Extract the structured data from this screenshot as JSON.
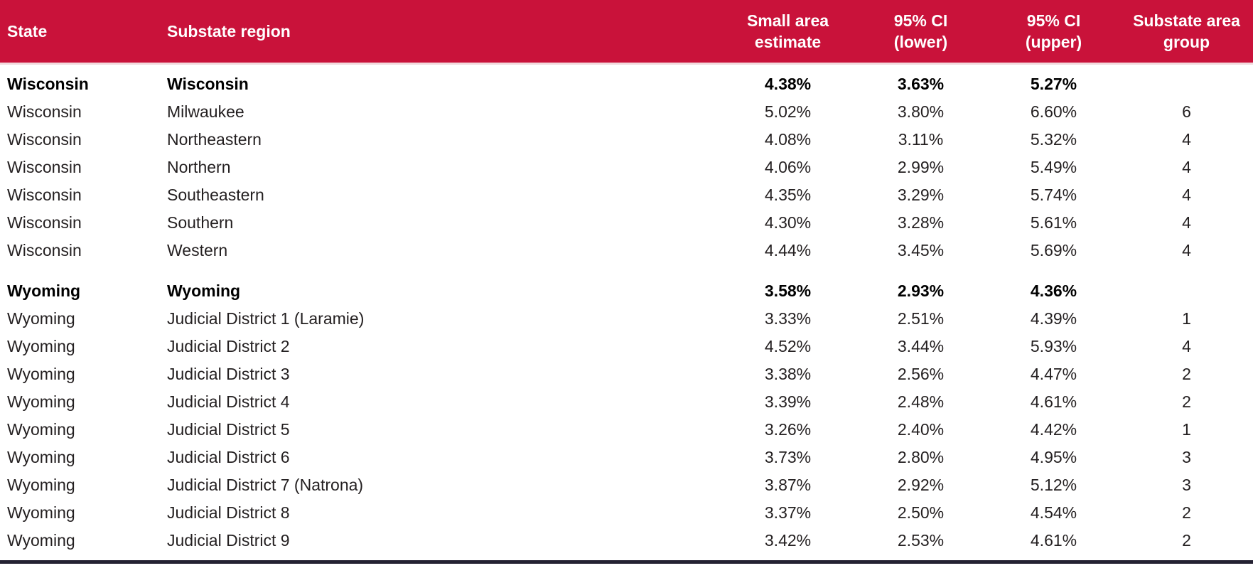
{
  "colors": {
    "header_background": "#C9123A",
    "header_text": "#FFFFFF",
    "body_text": "#231F20",
    "summary_text": "#000000",
    "bottom_rule": "#242132",
    "header_underline": "#F2DADD"
  },
  "table": {
    "header": {
      "state": "State",
      "region": "Substate region",
      "estimate_line1": "Small area",
      "estimate_line2": "estimate",
      "ci_lower_line1": "95% CI",
      "ci_lower_line2": "(lower)",
      "ci_upper_line1": "95% CI",
      "ci_upper_line2": "(upper)",
      "group_line1": "Substate area",
      "group_line2": "group"
    },
    "rows": [
      {
        "state": "Wisconsin",
        "region": "Wisconsin",
        "estimate": "4.38%",
        "lower": "3.63%",
        "upper": "5.27%",
        "group": "",
        "bold": true,
        "section_start": false
      },
      {
        "state": "Wisconsin",
        "region": "Milwaukee",
        "estimate": "5.02%",
        "lower": "3.80%",
        "upper": "6.60%",
        "group": "6",
        "bold": false,
        "section_start": false
      },
      {
        "state": "Wisconsin",
        "region": "Northeastern",
        "estimate": "4.08%",
        "lower": "3.11%",
        "upper": "5.32%",
        "group": "4",
        "bold": false,
        "section_start": false
      },
      {
        "state": "Wisconsin",
        "region": "Northern",
        "estimate": "4.06%",
        "lower": "2.99%",
        "upper": "5.49%",
        "group": "4",
        "bold": false,
        "section_start": false
      },
      {
        "state": "Wisconsin",
        "region": "Southeastern",
        "estimate": "4.35%",
        "lower": "3.29%",
        "upper": "5.74%",
        "group": "4",
        "bold": false,
        "section_start": false
      },
      {
        "state": "Wisconsin",
        "region": "Southern",
        "estimate": "4.30%",
        "lower": "3.28%",
        "upper": "5.61%",
        "group": "4",
        "bold": false,
        "section_start": false
      },
      {
        "state": "Wisconsin",
        "region": "Western",
        "estimate": "4.44%",
        "lower": "3.45%",
        "upper": "5.69%",
        "group": "4",
        "bold": false,
        "section_start": false
      },
      {
        "state": "Wyoming",
        "region": "Wyoming",
        "estimate": "3.58%",
        "lower": "2.93%",
        "upper": "4.36%",
        "group": "",
        "bold": true,
        "section_start": true
      },
      {
        "state": "Wyoming",
        "region": "Judicial District 1 (Laramie)",
        "estimate": "3.33%",
        "lower": "2.51%",
        "upper": "4.39%",
        "group": "1",
        "bold": false,
        "section_start": false
      },
      {
        "state": "Wyoming",
        "region": "Judicial District 2",
        "estimate": "4.52%",
        "lower": "3.44%",
        "upper": "5.93%",
        "group": "4",
        "bold": false,
        "section_start": false
      },
      {
        "state": "Wyoming",
        "region": "Judicial District 3",
        "estimate": "3.38%",
        "lower": "2.56%",
        "upper": "4.47%",
        "group": "2",
        "bold": false,
        "section_start": false
      },
      {
        "state": "Wyoming",
        "region": "Judicial District 4",
        "estimate": "3.39%",
        "lower": "2.48%",
        "upper": "4.61%",
        "group": "2",
        "bold": false,
        "section_start": false
      },
      {
        "state": "Wyoming",
        "region": "Judicial District 5",
        "estimate": "3.26%",
        "lower": "2.40%",
        "upper": "4.42%",
        "group": "1",
        "bold": false,
        "section_start": false
      },
      {
        "state": "Wyoming",
        "region": "Judicial District 6",
        "estimate": "3.73%",
        "lower": "2.80%",
        "upper": "4.95%",
        "group": "3",
        "bold": false,
        "section_start": false
      },
      {
        "state": "Wyoming",
        "region": "Judicial District 7 (Natrona)",
        "estimate": "3.87%",
        "lower": "2.92%",
        "upper": "5.12%",
        "group": "3",
        "bold": false,
        "section_start": false
      },
      {
        "state": "Wyoming",
        "region": "Judicial District 8",
        "estimate": "3.37%",
        "lower": "2.50%",
        "upper": "4.54%",
        "group": "2",
        "bold": false,
        "section_start": false
      },
      {
        "state": "Wyoming",
        "region": "Judicial District 9",
        "estimate": "3.42%",
        "lower": "2.53%",
        "upper": "4.61%",
        "group": "2",
        "bold": false,
        "section_start": false
      }
    ]
  }
}
